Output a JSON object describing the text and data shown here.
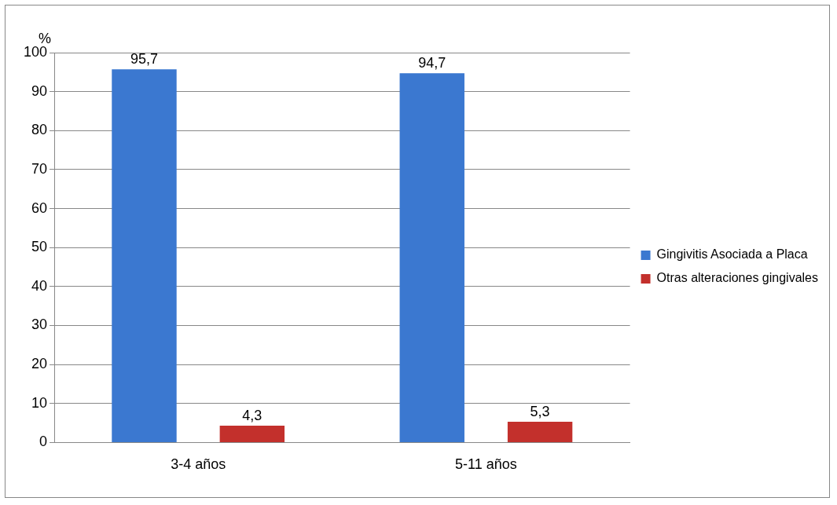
{
  "chart_data": {
    "type": "bar",
    "ylabel": "%",
    "categories": [
      "3-4 años",
      "5-11 años"
    ],
    "series": [
      {
        "name": "Gingivitis Asociada a Placa",
        "color": "#3b78d0",
        "values": [
          95.7,
          94.7
        ],
        "value_labels": [
          "95,7",
          "94,7"
        ]
      },
      {
        "name": "Otras alteraciones gingivales",
        "color": "#c3302c",
        "values": [
          4.3,
          5.3
        ],
        "value_labels": [
          "4,3",
          "5,3"
        ]
      }
    ],
    "ylim": [
      0,
      100
    ],
    "yticks": [
      0,
      10,
      20,
      30,
      40,
      50,
      60,
      70,
      80,
      90,
      100
    ],
    "grid": "y",
    "legend": "right"
  }
}
